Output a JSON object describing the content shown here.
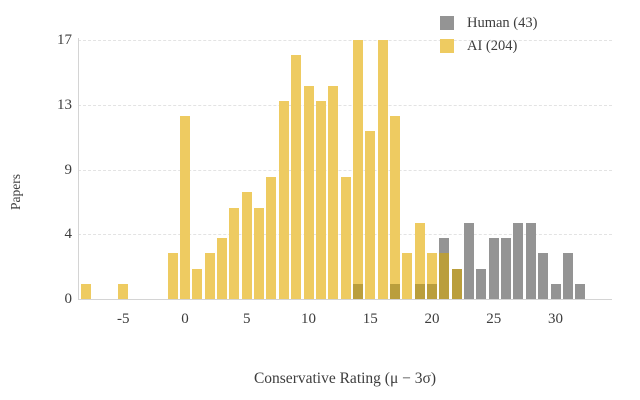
{
  "chart_data": {
    "type": "bar",
    "subtype": "overlaid-histogram",
    "title": "",
    "xlabel": "Conservative Rating (μ − 3σ)",
    "ylabel": "Papers",
    "ylim": [
      0,
      17
    ],
    "grid": "dashed-horizontal",
    "legend_position": "top-right",
    "legend": [
      {
        "label": "Human (43)",
        "color": "#949494"
      },
      {
        "label": "AI (204)",
        "color": "#EECB61"
      }
    ],
    "colors": {
      "ai": "#EECB61",
      "human": "#949494",
      "overlap": "#BA9E3C",
      "axis": "#d4d4d4",
      "grid": "#e3e3e3",
      "text": "#3d3d3d"
    },
    "y_ticks": [
      {
        "label": "0",
        "value": 0
      },
      {
        "label": "4",
        "value": 4.25
      },
      {
        "label": "9",
        "value": 8.5
      },
      {
        "label": "13",
        "value": 12.75
      },
      {
        "label": "17",
        "value": 17
      }
    ],
    "x_ticks": [
      -5,
      0,
      5,
      10,
      15,
      20,
      25,
      30
    ],
    "series_totals": {
      "human": 43,
      "ai": 204
    },
    "bins": [
      {
        "x": -8,
        "ai": 1,
        "human": 0
      },
      {
        "x": -5,
        "ai": 1,
        "human": 0
      },
      {
        "x": -1,
        "ai": 3,
        "human": 0
      },
      {
        "x": 0,
        "ai": 12,
        "human": 0
      },
      {
        "x": 1,
        "ai": 2,
        "human": 0
      },
      {
        "x": 2,
        "ai": 3,
        "human": 0
      },
      {
        "x": 3,
        "ai": 4,
        "human": 0
      },
      {
        "x": 4,
        "ai": 6,
        "human": 0
      },
      {
        "x": 5,
        "ai": 7,
        "human": 0
      },
      {
        "x": 6,
        "ai": 6,
        "human": 0
      },
      {
        "x": 7,
        "ai": 8,
        "human": 0
      },
      {
        "x": 8,
        "ai": 13,
        "human": 0
      },
      {
        "x": 9,
        "ai": 16,
        "human": 0
      },
      {
        "x": 10,
        "ai": 14,
        "human": 0
      },
      {
        "x": 11,
        "ai": 13,
        "human": 0
      },
      {
        "x": 12,
        "ai": 14,
        "human": 0
      },
      {
        "x": 13,
        "ai": 8,
        "human": 0
      },
      {
        "x": 14,
        "ai": 17,
        "human": 1
      },
      {
        "x": 15,
        "ai": 11,
        "human": 0
      },
      {
        "x": 16,
        "ai": 17,
        "human": 0
      },
      {
        "x": 17,
        "ai": 12,
        "human": 1
      },
      {
        "x": 18,
        "ai": 3,
        "human": 0
      },
      {
        "x": 19,
        "ai": 5,
        "human": 1
      },
      {
        "x": 20,
        "ai": 3,
        "human": 1
      },
      {
        "x": 21,
        "ai": 3,
        "human": 4
      },
      {
        "x": 22,
        "ai": 2,
        "human": 2
      },
      {
        "x": 23,
        "ai": 0,
        "human": 5
      },
      {
        "x": 24,
        "ai": 0,
        "human": 2
      },
      {
        "x": 25,
        "ai": 0,
        "human": 4
      },
      {
        "x": 26,
        "ai": 0,
        "human": 4
      },
      {
        "x": 27,
        "ai": 0,
        "human": 5
      },
      {
        "x": 28,
        "ai": 0,
        "human": 5
      },
      {
        "x": 29,
        "ai": 0,
        "human": 3
      },
      {
        "x": 30,
        "ai": 0,
        "human": 1
      },
      {
        "x": 31,
        "ai": 0,
        "human": 3
      },
      {
        "x": 32,
        "ai": 0,
        "human": 1
      }
    ]
  }
}
